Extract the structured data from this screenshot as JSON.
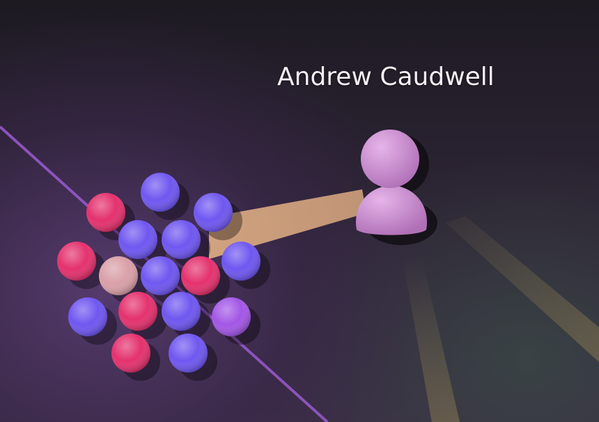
{
  "user": {
    "name": "Andrew Caudwell",
    "avatar_color": "#c684c9"
  },
  "palette": {
    "beam": "#d8a880",
    "edge": "#9a5bd0",
    "faint_beam": "#b59a5a"
  },
  "file_nodes": [
    {
      "color": "#e4326e"
    },
    {
      "color": "#6f57f0"
    },
    {
      "color": "#6f57f0"
    },
    {
      "color": "#6f57f0"
    },
    {
      "color": "#6f57f0"
    },
    {
      "color": "#e4326e"
    },
    {
      "color": "#d9a0a8"
    },
    {
      "color": "#6f57f0"
    },
    {
      "color": "#e4326e"
    },
    {
      "color": "#6f57f0"
    },
    {
      "color": "#6f57f0"
    },
    {
      "color": "#e4326e"
    },
    {
      "color": "#6f57f0"
    },
    {
      "color": "#a357e6"
    },
    {
      "color": "#e4326e"
    },
    {
      "color": "#6f57f0"
    },
    {
      "color": "#6f57f0"
    }
  ]
}
